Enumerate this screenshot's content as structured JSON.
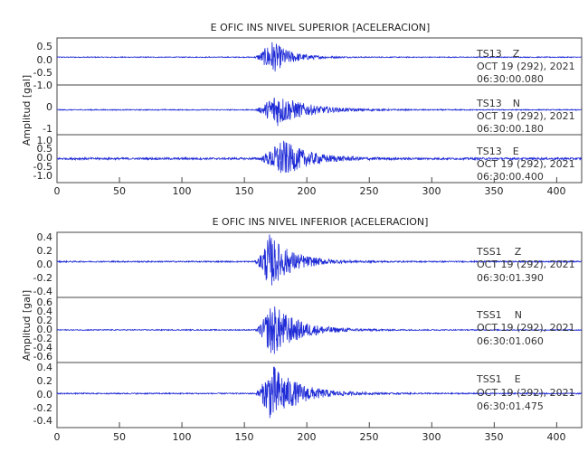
{
  "chart_data": [
    {
      "type": "line",
      "title": "E OFIC INS NIVEL SUPERIOR [ACELERACION]",
      "ylabel": "Amplitud [gal]",
      "xlim": [
        0,
        420
      ],
      "x_ticks": [
        "0",
        "50",
        "100",
        "150",
        "200",
        "250",
        "300",
        "350",
        "400"
      ],
      "line_color": "#1f2bd6",
      "panels": [
        {
          "station": "TS13",
          "component": "Z",
          "date": "OCT 19 (292), 2021",
          "time": "06:30:00.080",
          "y_ticks": [
            "0.5",
            "0.0",
            "-0.5",
            "-1.0"
          ],
          "signal": {
            "onset": 157,
            "peak_time": 172,
            "peak_amplitude": 0.8,
            "decay": 14,
            "noise": 0.02
          }
        },
        {
          "station": "TS13",
          "component": "N",
          "date": "OCT 19 (292), 2021",
          "time": "06:30:00.180",
          "y_ticks": [
            "0",
            "-1"
          ],
          "signal": {
            "onset": 158,
            "peak_time": 175,
            "peak_amplitude": 1.05,
            "decay": 22,
            "noise": 0.03
          }
        },
        {
          "station": "TS13",
          "component": "E",
          "date": "OCT 19 (292), 2021",
          "time": "06:30:00.400",
          "y_ticks": [
            "1.0",
            "0.5",
            "0.0",
            "-0.5",
            "-1.0"
          ],
          "signal": {
            "onset": 160,
            "peak_time": 180,
            "peak_amplitude": 0.95,
            "decay": 20,
            "noise": 0.05
          }
        }
      ]
    },
    {
      "type": "line",
      "title": "E OFIC INS NIVEL INFERIOR [ACELERACION]",
      "ylabel": "Amplitud [gal]",
      "xlim": [
        0,
        420
      ],
      "x_ticks": [
        "0",
        "50",
        "100",
        "150",
        "200",
        "250",
        "300",
        "350",
        "400"
      ],
      "line_color": "#1f2bd6",
      "panels": [
        {
          "station": "TSS1",
          "component": "Z",
          "date": "OCT 19 (292), 2021",
          "time": "06:30:01.390",
          "y_ticks": [
            "0.4",
            "0.2",
            "0.0",
            "-0.2",
            "-0.4"
          ],
          "signal": {
            "onset": 158,
            "peak_time": 170,
            "peak_amplitude": 0.42,
            "decay": 18,
            "noise": 0.01
          }
        },
        {
          "station": "TSS1",
          "component": "N",
          "date": "OCT 19 (292), 2021",
          "time": "06:30:01.060",
          "y_ticks": [
            "0.6",
            "0.4",
            "0.2",
            "0.0",
            "-0.2",
            "-0.4",
            "-0.6"
          ],
          "signal": {
            "onset": 158,
            "peak_time": 172,
            "peak_amplitude": 0.55,
            "decay": 20,
            "noise": 0.01
          }
        },
        {
          "station": "TSS1",
          "component": "E",
          "date": "OCT 19 (292), 2021",
          "time": "06:30:01.475",
          "y_ticks": [
            "0.4",
            "0.2",
            "0.0",
            "-0.2",
            "-0.4"
          ],
          "signal": {
            "onset": 158,
            "peak_time": 172,
            "peak_amplitude": 0.48,
            "decay": 20,
            "noise": 0.01
          }
        }
      ]
    }
  ]
}
